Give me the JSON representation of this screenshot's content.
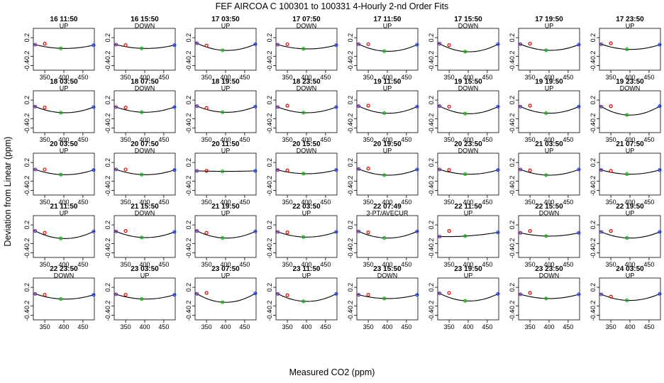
{
  "figure": {
    "title": "FEF   AIRCOA C   100301 to 100331   4-Hourly 2-nd Order Fits",
    "xlabel": "Measured CO2 (ppm)",
    "ylabel": "Deviation from Linear (ppm)"
  },
  "chart_data": {
    "type": "scatter",
    "layout_grid": {
      "rows": 5,
      "cols": 8
    },
    "xlim": [
      320,
      480
    ],
    "ylim": [
      -0.5,
      0.4
    ],
    "xticks": [
      350,
      400,
      450
    ],
    "yticks": [
      -0.4,
      -0.2,
      0.2
    ],
    "ytick_labels": [
      "-0.4",
      "-0.2",
      "0.2"
    ],
    "point_x": [
      325,
      350,
      392,
      478
    ],
    "point_colors": [
      "#7b2fbe",
      "#e00000",
      "#00c000",
      "#1f3fff"
    ],
    "panels": [
      {
        "time": "16 11:50",
        "mode": "UP",
        "y": [
          0.05,
          0.07,
          -0.03,
          0.04
        ]
      },
      {
        "time": "16 15:50",
        "mode": "DOWN",
        "y": [
          0.05,
          0.04,
          -0.03,
          0.04
        ]
      },
      {
        "time": "17 03:50",
        "mode": "UP",
        "y": [
          0.08,
          0.03,
          -0.07,
          0.06
        ]
      },
      {
        "time": "17 07:50",
        "mode": "DOWN",
        "y": [
          0.05,
          0.06,
          -0.04,
          0.04
        ]
      },
      {
        "time": "17 11:50",
        "mode": "UP",
        "y": [
          0.06,
          0.06,
          -0.09,
          0.05
        ]
      },
      {
        "time": "17 15:50",
        "mode": "DOWN",
        "y": [
          0.07,
          0.04,
          -0.1,
          0.06
        ]
      },
      {
        "time": "17 19:50",
        "mode": "UP",
        "y": [
          0.06,
          0.07,
          -0.07,
          0.05
        ]
      },
      {
        "time": "17 23:50",
        "mode": "UP",
        "y": [
          0.06,
          0.08,
          -0.05,
          0.05
        ]
      },
      {
        "time": "18 03:50",
        "mode": "UP",
        "y": [
          0.06,
          0.04,
          -0.07,
          0.05
        ]
      },
      {
        "time": "18 07:50",
        "mode": "DOWN",
        "y": [
          0.05,
          0.04,
          -0.06,
          0.05
        ]
      },
      {
        "time": "18 19:50",
        "mode": "UP",
        "y": [
          0.07,
          0.03,
          -0.06,
          0.06
        ]
      },
      {
        "time": "18 23:50",
        "mode": "DOWN",
        "y": [
          0.05,
          0.08,
          -0.07,
          0.05
        ]
      },
      {
        "time": "19 11:50",
        "mode": "UP",
        "y": [
          0.07,
          0.08,
          -0.08,
          0.06
        ]
      },
      {
        "time": "19 15:50",
        "mode": "DOWN",
        "y": [
          0.07,
          0.06,
          -0.09,
          0.06
        ]
      },
      {
        "time": "19 19:50",
        "mode": "UP",
        "y": [
          0.06,
          0.08,
          -0.08,
          0.06
        ]
      },
      {
        "time": "19 23:50",
        "mode": "DOWN",
        "y": [
          0.06,
          0.07,
          -0.12,
          0.07
        ]
      },
      {
        "time": "20 03:50",
        "mode": "UP",
        "y": [
          0.05,
          0.05,
          -0.06,
          0.04
        ]
      },
      {
        "time": "20 07:50",
        "mode": "DOWN",
        "y": [
          0.05,
          0.05,
          -0.06,
          0.04
        ]
      },
      {
        "time": "20 11:50",
        "mode": "UP",
        "y": [
          0.02,
          0.02,
          0.01,
          0.02
        ]
      },
      {
        "time": "20 15:50",
        "mode": "DOWN",
        "y": [
          0.04,
          0.03,
          -0.04,
          0.04
        ]
      },
      {
        "time": "20 19:50",
        "mode": "UP",
        "y": [
          0.06,
          0.07,
          -0.07,
          0.05
        ]
      },
      {
        "time": "20 23:50",
        "mode": "DOWN",
        "y": [
          0.05,
          0.04,
          -0.05,
          0.04
        ]
      },
      {
        "time": "21 03:50",
        "mode": "UP",
        "y": [
          0.05,
          0.03,
          -0.07,
          0.05
        ]
      },
      {
        "time": "21 07:50",
        "mode": "UP",
        "y": [
          0.04,
          0.02,
          -0.05,
          0.04
        ]
      },
      {
        "time": "21 11:50",
        "mode": "UP",
        "y": [
          0.07,
          0.03,
          -0.09,
          0.06
        ]
      },
      {
        "time": "21 15:50",
        "mode": "DOWN",
        "y": [
          0.06,
          0.07,
          -0.07,
          0.05
        ]
      },
      {
        "time": "21 19:50",
        "mode": "UP",
        "y": [
          0.07,
          0.03,
          -0.08,
          0.06
        ]
      },
      {
        "time": "22 03:50",
        "mode": "UP",
        "y": [
          0.05,
          0.04,
          -0.06,
          0.05
        ]
      },
      {
        "time": "22 07:49",
        "mode": "3-PT/AVECUR",
        "y": [
          0.06,
          0.04,
          -0.08,
          0.06
        ]
      },
      {
        "time": "22 11:50",
        "mode": "UP",
        "y": [
          -0.05,
          0.07,
          -0.04,
          0.04
        ]
      },
      {
        "time": "22 15:50",
        "mode": "DOWN",
        "y": [
          0.03,
          0.07,
          -0.04,
          0.03
        ]
      },
      {
        "time": "22 19:50",
        "mode": "UP",
        "y": [
          0.05,
          0.07,
          -0.08,
          0.05
        ]
      },
      {
        "time": "22 23:50",
        "mode": "DOWN",
        "y": [
          0.06,
          0.04,
          -0.05,
          0.04
        ]
      },
      {
        "time": "23 03:50",
        "mode": "UP",
        "y": [
          0.05,
          0.04,
          -0.05,
          0.04
        ]
      },
      {
        "time": "23 07:50",
        "mode": "UP",
        "y": [
          0.06,
          0.08,
          -0.12,
          0.07
        ]
      },
      {
        "time": "23 11:50",
        "mode": "UP",
        "y": [
          0.06,
          0.03,
          -0.1,
          0.06
        ]
      },
      {
        "time": "23 15:50",
        "mode": "DOWN",
        "y": [
          0.04,
          0.04,
          -0.04,
          0.04
        ]
      },
      {
        "time": "23 19:50",
        "mode": "UP",
        "y": [
          0.07,
          0.08,
          -0.09,
          0.06
        ]
      },
      {
        "time": "23 23:50",
        "mode": "DOWN",
        "y": [
          0.05,
          0.08,
          -0.04,
          0.05
        ]
      },
      {
        "time": "24 03:50",
        "mode": "UP",
        "y": [
          0.05,
          0.0,
          -0.08,
          0.06
        ]
      }
    ]
  }
}
